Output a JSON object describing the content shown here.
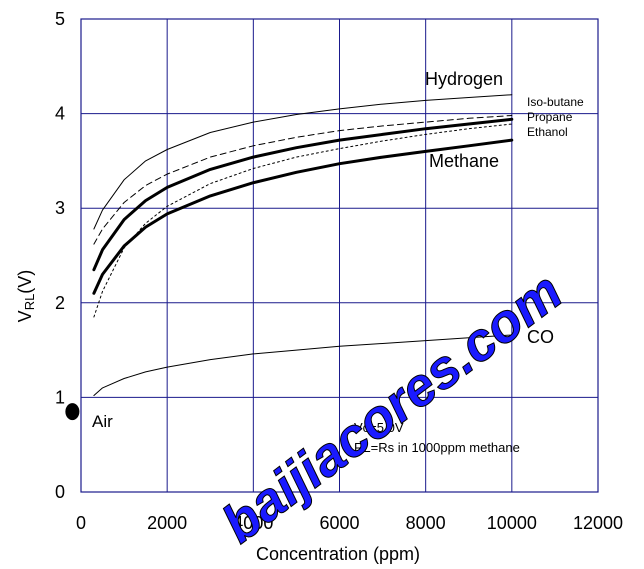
{
  "chart_data": {
    "type": "line",
    "xlabel": "Concentration (ppm)",
    "ylabel": "V",
    "ylabel_sub": "RL",
    "ylabel_suffix": "(V)",
    "xlim": [
      0,
      12000
    ],
    "ylim": [
      0,
      5
    ],
    "xticks": [
      "0",
      "2000",
      "4000",
      "6000",
      "8000",
      "10000",
      "12000"
    ],
    "yticks": [
      "0",
      "1",
      "2",
      "3",
      "4",
      "5"
    ],
    "grid": true,
    "colors": {
      "grid": "#1a1a8c",
      "line": "#000000",
      "watermark": "#1a1aff"
    },
    "series": [
      {
        "name": "Hydrogen",
        "style": "thin",
        "x": [
          300,
          500,
          1000,
          1500,
          2000,
          3000,
          4000,
          5000,
          6000,
          7000,
          8000,
          9000,
          10000
        ],
        "y": [
          2.78,
          2.98,
          3.3,
          3.5,
          3.62,
          3.8,
          3.91,
          3.99,
          4.05,
          4.1,
          4.14,
          4.17,
          4.2
        ]
      },
      {
        "name": "Iso-butane",
        "style": "dashed",
        "x": [
          300,
          500,
          1000,
          1500,
          2000,
          3000,
          4000,
          5000,
          6000,
          7000,
          8000,
          9000,
          10000
        ],
        "y": [
          2.62,
          2.78,
          3.06,
          3.24,
          3.36,
          3.54,
          3.66,
          3.75,
          3.82,
          3.87,
          3.91,
          3.95,
          3.98
        ]
      },
      {
        "name": "Propane",
        "style": "bold",
        "x": [
          300,
          500,
          1000,
          1500,
          2000,
          3000,
          4000,
          5000,
          6000,
          7000,
          8000,
          9000,
          10000
        ],
        "y": [
          2.35,
          2.56,
          2.88,
          3.08,
          3.22,
          3.41,
          3.54,
          3.64,
          3.72,
          3.78,
          3.84,
          3.89,
          3.94
        ]
      },
      {
        "name": "Ethanol",
        "style": "dotted",
        "x": [
          300,
          500,
          1000,
          1500,
          2000,
          3000,
          4000,
          5000,
          6000,
          7000,
          8000,
          9000,
          10000
        ],
        "y": [
          1.85,
          2.12,
          2.58,
          2.84,
          3.02,
          3.26,
          3.42,
          3.54,
          3.63,
          3.71,
          3.78,
          3.84,
          3.89
        ]
      },
      {
        "name": "Methane",
        "style": "bold",
        "x": [
          300,
          500,
          1000,
          1500,
          2000,
          3000,
          4000,
          5000,
          6000,
          7000,
          8000,
          9000,
          10000
        ],
        "y": [
          2.1,
          2.3,
          2.6,
          2.8,
          2.94,
          3.13,
          3.27,
          3.38,
          3.47,
          3.54,
          3.6,
          3.66,
          3.72
        ]
      },
      {
        "name": "CO",
        "style": "thin",
        "x": [
          300,
          500,
          1000,
          1500,
          2000,
          3000,
          4000,
          5000,
          6000,
          7000,
          8000,
          9000,
          10000
        ],
        "y": [
          1.02,
          1.1,
          1.2,
          1.27,
          1.32,
          1.4,
          1.46,
          1.5,
          1.54,
          1.57,
          1.6,
          1.63,
          1.66
        ]
      }
    ],
    "air_point": {
      "label": "Air",
      "x": -200,
      "y": 0.85
    },
    "conditions": [
      "Vc=5.0V",
      "RL=Rs in 1000ppm methane"
    ]
  },
  "watermark": "baijiacores.com"
}
